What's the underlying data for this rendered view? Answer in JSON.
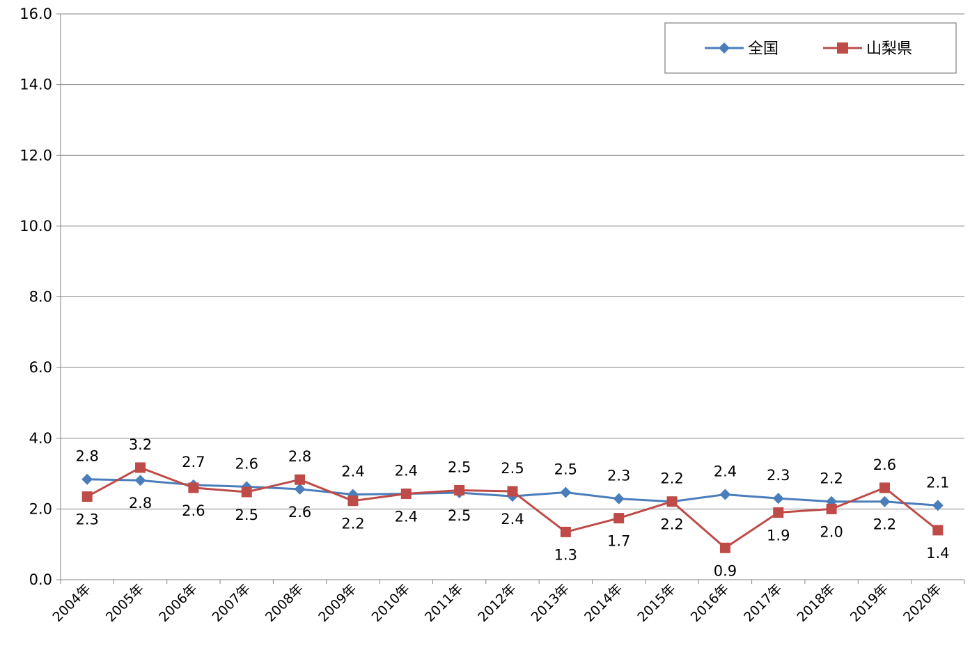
{
  "chart_data": {
    "type": "line",
    "categories": [
      "2004年",
      "2005年",
      "2006年",
      "2007年",
      "2008年",
      "2009年",
      "2010年",
      "2011年",
      "2012年",
      "2013年",
      "2014年",
      "2015年",
      "2016年",
      "2017年",
      "2018年",
      "2019年",
      "2020年"
    ],
    "series": [
      {
        "name": "全国",
        "color": "#4a7ebb",
        "marker": "diamond",
        "values": [
          2.84,
          2.81,
          2.68,
          2.63,
          2.56,
          2.41,
          2.43,
          2.46,
          2.36,
          2.47,
          2.29,
          2.21,
          2.41,
          2.3,
          2.21,
          2.21,
          2.1
        ],
        "labels": [
          "2.8",
          "2.8",
          "2.7",
          "2.6",
          "2.6",
          "2.4",
          "2.4",
          "2.5",
          "2.4",
          "2.5",
          "2.3",
          "2.2",
          "2.4",
          "2.3",
          "2.2",
          "2.2",
          "2.1"
        ]
      },
      {
        "name": "山梨県",
        "color": "#be4b48",
        "marker": "square",
        "values": [
          2.35,
          3.17,
          2.6,
          2.48,
          2.83,
          2.23,
          2.43,
          2.53,
          2.5,
          1.35,
          1.74,
          2.21,
          0.9,
          1.9,
          2.0,
          2.6,
          1.4
        ],
        "labels": [
          "2.3",
          "3.2",
          "2.6",
          "2.5",
          "2.8",
          "2.2",
          "2.4",
          "2.5",
          "2.5",
          "1.3",
          "1.7",
          "2.2",
          "0.9",
          "1.9",
          "2.0",
          "2.6",
          "1.4"
        ]
      }
    ],
    "y_ticks": [
      "0.0",
      "2.0",
      "4.0",
      "6.0",
      "8.0",
      "10.0",
      "12.0",
      "14.0",
      "16.0"
    ],
    "ylim": [
      0,
      16
    ],
    "grid": "horizontal",
    "legend_position": "top-right",
    "title": "",
    "xlabel": "",
    "ylabel": ""
  }
}
